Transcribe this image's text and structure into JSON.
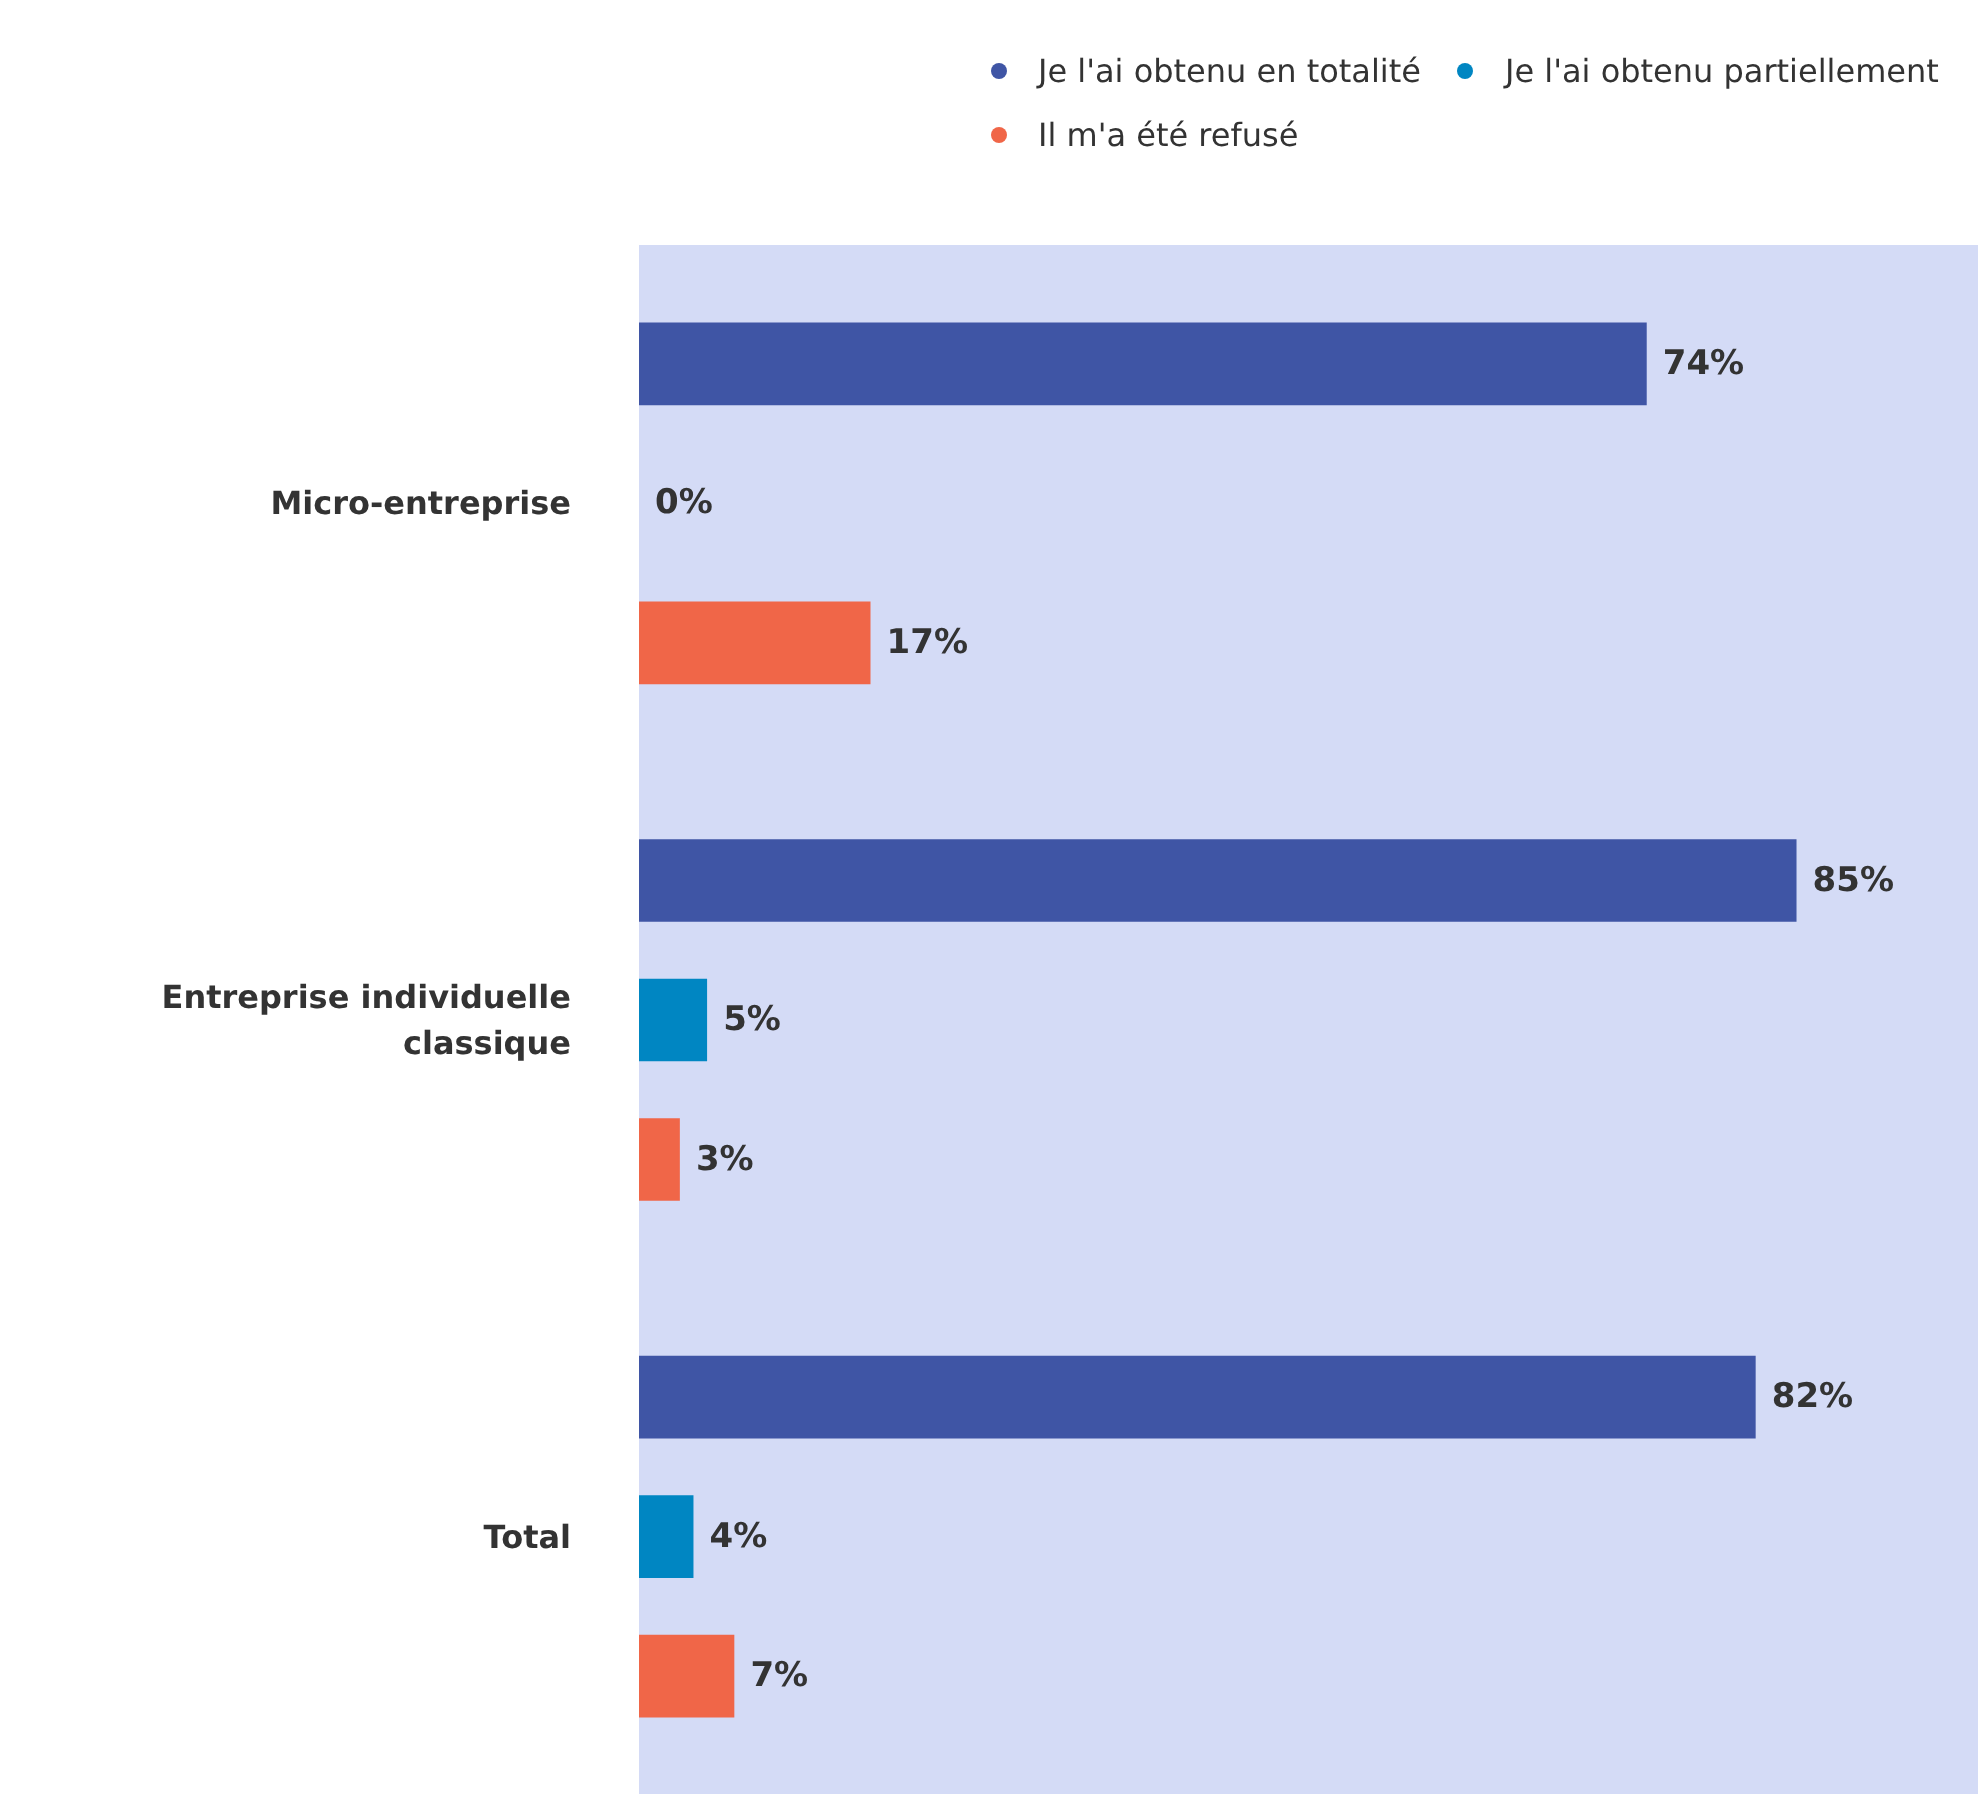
{
  "chart_data": {
    "type": "bar",
    "orientation": "horizontal",
    "categories": [
      "Micro-entreprise",
      "Entreprise individuelle classique",
      "Total"
    ],
    "series": [
      {
        "name": "Je l'ai obtenu en totalité",
        "color": "#3f55a5",
        "values": [
          74,
          85,
          82
        ],
        "value_labels": [
          "74%",
          "85%",
          "82%"
        ]
      },
      {
        "name": "Je l'ai obtenu partiellement",
        "color": "#0086c2",
        "values": [
          0,
          5,
          4
        ],
        "value_labels": [
          "0%",
          "5%",
          "4%"
        ]
      },
      {
        "name": "Il m'a été refusé",
        "color": "#f06648",
        "values": [
          17,
          3,
          7
        ],
        "value_labels": [
          "17%",
          "3%",
          "7%"
        ]
      }
    ],
    "xlim": [
      0,
      98.4
    ],
    "legend": "top",
    "tick_labels": "y"
  }
}
